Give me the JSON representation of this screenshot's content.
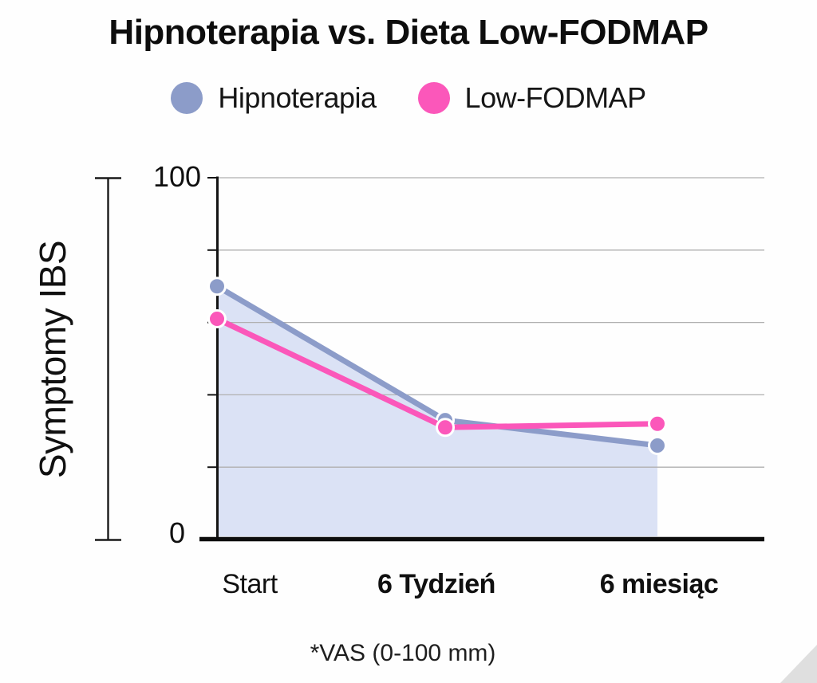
{
  "title": "Hipnoterapia vs. Dieta Low-FODMAP",
  "chart_data": {
    "type": "line",
    "categories": [
      "Start",
      "6 Tydzień",
      "6 miesiąc"
    ],
    "series": [
      {
        "name": "Hipnoterapia",
        "color": "#8C9CC9",
        "values": [
          70,
          33,
          26
        ],
        "area": true,
        "area_fill": "#DBE2F5"
      },
      {
        "name": "Low-FODMAP",
        "color": "#FB57BA",
        "values": [
          61,
          31,
          32
        ],
        "area": false
      }
    ],
    "ylabel": "Symptomy IBS",
    "ylim": [
      0,
      100
    ],
    "gridline_values": [
      20,
      40,
      60,
      80,
      100
    ],
    "grid_color": "#B0B0B0",
    "axis_color": "#141414",
    "legend_position": "top",
    "grid_on": true,
    "footnote": "*VAS (0-100 mm)"
  }
}
